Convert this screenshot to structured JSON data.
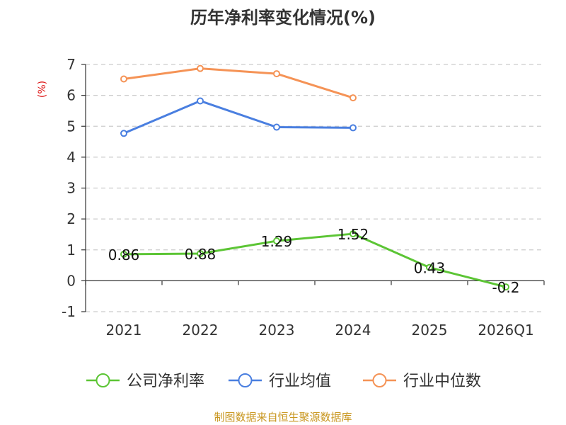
{
  "chart_data": {
    "type": "line",
    "title": "历年净利率变化情况(%)",
    "ylabel": "(%)",
    "xlabel": "",
    "categories": [
      "2021",
      "2022",
      "2023",
      "2024",
      "2025",
      "2026Q1"
    ],
    "ylim": [
      -1,
      7
    ],
    "yticks": [
      -1,
      0,
      1,
      2,
      3,
      4,
      5,
      6,
      7
    ],
    "grid": true,
    "legend_position": "bottom",
    "series": [
      {
        "name": "公司净利率",
        "color": "#5cc535",
        "values": [
          0.86,
          0.88,
          1.29,
          1.52,
          0.43,
          -0.2
        ],
        "labels": [
          "0.86",
          "0.88",
          "1.29",
          "1.52",
          "0.43",
          "-0.2"
        ],
        "show_labels": true
      },
      {
        "name": "行业均值",
        "color": "#4a7fe0",
        "values": [
          4.77,
          5.82,
          4.97,
          4.95,
          null,
          null
        ],
        "show_labels": false
      },
      {
        "name": "行业中位数",
        "color": "#f59356",
        "values": [
          6.53,
          6.87,
          6.7,
          5.92,
          null,
          null
        ],
        "show_labels": false
      }
    ]
  },
  "colors": {
    "unit": "#dd1111",
    "source": "#c8961e",
    "axis": "#333333",
    "grid": "#cccccc"
  },
  "source": "制图数据来自恒生聚源数据库"
}
